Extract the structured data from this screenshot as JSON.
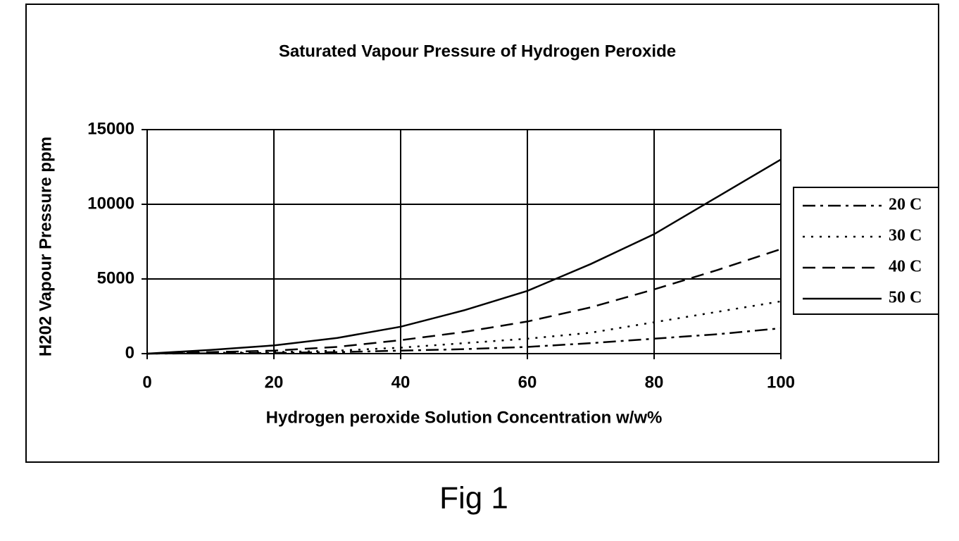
{
  "chart_data": {
    "type": "line",
    "title": "Saturated Vapour Pressure of Hydrogen Peroxide",
    "x_label": "Hydrogen peroxide Solution Concentration w/w%",
    "y_label": "H202 Vapour Pressure ppm",
    "caption": "Fig 1",
    "x": [
      0,
      10,
      20,
      30,
      40,
      50,
      60,
      70,
      80,
      90,
      100
    ],
    "series": [
      {
        "name": "20 C",
        "color": "#000000",
        "linestyle": "dashdot",
        "values": [
          0,
          20,
          50,
          100,
          200,
          300,
          450,
          700,
          1000,
          1300,
          1700
        ]
      },
      {
        "name": "30 C",
        "color": "#000000",
        "linestyle": "dotted",
        "values": [
          0,
          50,
          100,
          200,
          400,
          700,
          1000,
          1400,
          2100,
          2800,
          3500
        ]
      },
      {
        "name": "40 C",
        "color": "#000000",
        "linestyle": "dashed",
        "values": [
          0,
          100,
          200,
          450,
          900,
          1450,
          2150,
          3100,
          4300,
          5600,
          7000
        ]
      },
      {
        "name": "50 C",
        "color": "#000000",
        "linestyle": "solid",
        "values": [
          0,
          250,
          550,
          1050,
          1800,
          2900,
          4200,
          6000,
          8000,
          10500,
          13000
        ]
      }
    ],
    "xlim": [
      0,
      100
    ],
    "xticks": [
      0,
      20,
      40,
      60,
      80,
      100
    ],
    "ylim": [
      0,
      15000
    ],
    "yticks": [
      0,
      5000,
      10000,
      15000
    ],
    "grid": true,
    "legend": "right"
  }
}
